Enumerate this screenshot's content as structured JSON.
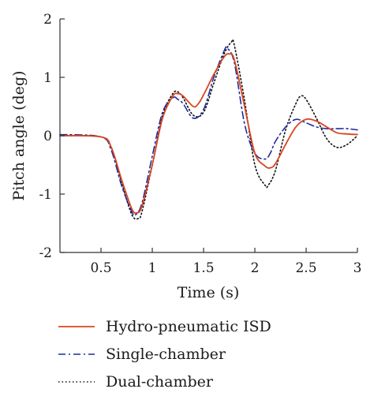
{
  "chart_data": {
    "type": "line",
    "xlabel": "Time (s)",
    "ylabel": "Pitch angle (deg)",
    "xlim": [
      0.1,
      3.0
    ],
    "ylim": [
      -2,
      2
    ],
    "xticks": [
      0.5,
      1,
      1.5,
      2,
      2.5,
      3
    ],
    "xtick_labels": [
      "0.5",
      "1",
      "1.5",
      "2",
      "2.5",
      "3"
    ],
    "yticks": [
      -2,
      -1,
      0,
      1,
      2
    ],
    "ytick_labels": [
      "-2",
      "-1",
      "0",
      "1",
      "2"
    ],
    "grid": false,
    "legend_position": "bottom",
    "series": [
      {
        "name": "Hydro-pneumatic ISD",
        "color": "#d9441f",
        "dash": "solid",
        "x": [
          0.1,
          0.5,
          0.6,
          0.7,
          0.8,
          0.85,
          0.9,
          1.0,
          1.1,
          1.2,
          1.25,
          1.3,
          1.4,
          1.45,
          1.5,
          1.6,
          1.7,
          1.75,
          1.8,
          1.9,
          2.0,
          2.1,
          2.15,
          2.2,
          2.3,
          2.4,
          2.5,
          2.6,
          2.7,
          2.8,
          2.9,
          3.0
        ],
        "y": [
          0.0,
          -0.02,
          -0.2,
          -0.75,
          -1.25,
          -1.32,
          -1.2,
          -0.5,
          0.3,
          0.68,
          0.72,
          0.68,
          0.5,
          0.55,
          0.7,
          1.05,
          1.35,
          1.4,
          1.3,
          0.5,
          -0.3,
          -0.52,
          -0.55,
          -0.48,
          -0.15,
          0.15,
          0.28,
          0.25,
          0.15,
          0.05,
          0.03,
          0.02
        ]
      },
      {
        "name": "Single-chamber",
        "color": "#1f2d9a",
        "dash": "dashdot",
        "x": [
          0.1,
          0.5,
          0.6,
          0.7,
          0.8,
          0.84,
          0.9,
          1.0,
          1.1,
          1.2,
          1.25,
          1.3,
          1.4,
          1.5,
          1.6,
          1.7,
          1.73,
          1.8,
          1.9,
          2.0,
          2.1,
          2.15,
          2.2,
          2.3,
          2.4,
          2.5,
          2.6,
          2.7,
          2.8,
          2.9,
          3.0
        ],
        "y": [
          0.02,
          -0.02,
          -0.25,
          -0.85,
          -1.3,
          -1.35,
          -1.15,
          -0.35,
          0.4,
          0.65,
          0.62,
          0.55,
          0.3,
          0.45,
          1.0,
          1.45,
          1.5,
          1.25,
          0.2,
          -0.3,
          -0.4,
          -0.3,
          -0.1,
          0.15,
          0.28,
          0.22,
          0.15,
          0.12,
          0.12,
          0.12,
          0.1
        ]
      },
      {
        "name": "Dual-chamber",
        "color": "#111111",
        "dash": "dotted",
        "x": [
          0.1,
          0.5,
          0.6,
          0.7,
          0.8,
          0.86,
          0.9,
          1.0,
          1.1,
          1.2,
          1.25,
          1.3,
          1.4,
          1.5,
          1.6,
          1.7,
          1.77,
          1.8,
          1.9,
          2.0,
          2.1,
          2.13,
          2.2,
          2.3,
          2.4,
          2.45,
          2.5,
          2.6,
          2.7,
          2.8,
          2.9,
          3.0
        ],
        "y": [
          0.0,
          -0.02,
          -0.2,
          -0.8,
          -1.35,
          -1.42,
          -1.3,
          -0.5,
          0.35,
          0.72,
          0.75,
          0.65,
          0.35,
          0.4,
          0.9,
          1.4,
          1.6,
          1.55,
          0.6,
          -0.5,
          -0.85,
          -0.85,
          -0.6,
          0.1,
          0.55,
          0.68,
          0.62,
          0.3,
          -0.05,
          -0.2,
          -0.15,
          0.0
        ]
      }
    ]
  }
}
